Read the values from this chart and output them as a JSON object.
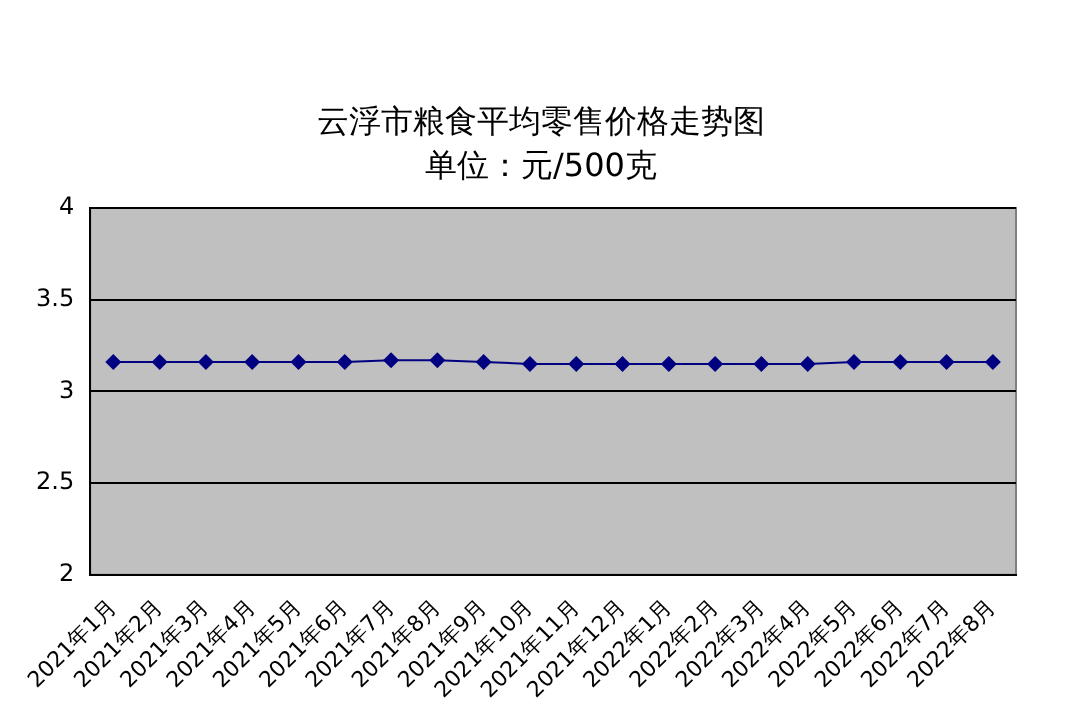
{
  "chart_data": {
    "type": "line",
    "title": "云浮市粮食平均零售价格走势图",
    "subtitle": "单位：元/500克",
    "categories": [
      "2021年1月",
      "2021年2月",
      "2021年3月",
      "2021年4月",
      "2021年5月",
      "2021年6月",
      "2021年7月",
      "2021年8月",
      "2021年9月",
      "2021年10月",
      "2021年11月",
      "2021年12月",
      "2022年1月",
      "2022年2月",
      "2022年3月",
      "2022年4月",
      "2022年5月",
      "2022年6月",
      "2022年7月",
      "2022年8月"
    ],
    "series": [
      {
        "color": "#000080",
        "values": [
          3.16,
          3.16,
          3.16,
          3.16,
          3.16,
          3.16,
          3.17,
          3.17,
          3.16,
          3.15,
          3.15,
          3.15,
          3.15,
          3.15,
          3.15,
          3.15,
          3.16,
          3.16,
          3.16,
          3.16
        ]
      }
    ],
    "ylim": [
      2,
      4
    ],
    "yticks": [
      2,
      2.5,
      3,
      3.5,
      4
    ],
    "grid": "y",
    "legend": false,
    "marker": "diamond",
    "line_style": "solid"
  }
}
